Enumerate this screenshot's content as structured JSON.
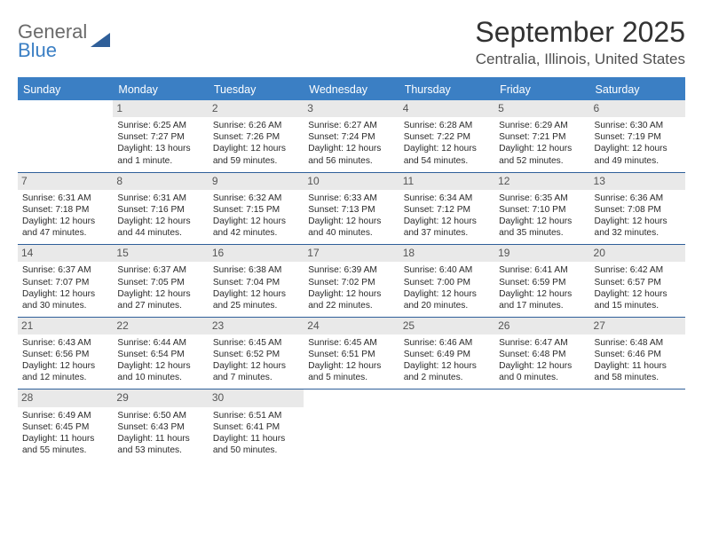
{
  "brand": {
    "name_line1": "General",
    "name_line2": "Blue",
    "icon_color": "#2f5f99"
  },
  "header": {
    "month_title": "September 2025",
    "location": "Centralia, Illinois, United States"
  },
  "style": {
    "header_bg": "#3b7fc4",
    "border_color": "#2f5f99",
    "daynum_bg": "#e9e9e9",
    "text_color": "#333333",
    "title_fontsize": 32,
    "location_fontsize": 17,
    "dayheader_fontsize": 12.5,
    "cell_fontsize": 10.2
  },
  "day_headers": [
    "Sunday",
    "Monday",
    "Tuesday",
    "Wednesday",
    "Thursday",
    "Friday",
    "Saturday"
  ],
  "weeks": [
    [
      {
        "empty": true
      },
      {
        "num": "1",
        "sunrise": "Sunrise: 6:25 AM",
        "sunset": "Sunset: 7:27 PM",
        "daylight1": "Daylight: 13 hours",
        "daylight2": "and 1 minute."
      },
      {
        "num": "2",
        "sunrise": "Sunrise: 6:26 AM",
        "sunset": "Sunset: 7:26 PM",
        "daylight1": "Daylight: 12 hours",
        "daylight2": "and 59 minutes."
      },
      {
        "num": "3",
        "sunrise": "Sunrise: 6:27 AM",
        "sunset": "Sunset: 7:24 PM",
        "daylight1": "Daylight: 12 hours",
        "daylight2": "and 56 minutes."
      },
      {
        "num": "4",
        "sunrise": "Sunrise: 6:28 AM",
        "sunset": "Sunset: 7:22 PM",
        "daylight1": "Daylight: 12 hours",
        "daylight2": "and 54 minutes."
      },
      {
        "num": "5",
        "sunrise": "Sunrise: 6:29 AM",
        "sunset": "Sunset: 7:21 PM",
        "daylight1": "Daylight: 12 hours",
        "daylight2": "and 52 minutes."
      },
      {
        "num": "6",
        "sunrise": "Sunrise: 6:30 AM",
        "sunset": "Sunset: 7:19 PM",
        "daylight1": "Daylight: 12 hours",
        "daylight2": "and 49 minutes."
      }
    ],
    [
      {
        "num": "7",
        "sunrise": "Sunrise: 6:31 AM",
        "sunset": "Sunset: 7:18 PM",
        "daylight1": "Daylight: 12 hours",
        "daylight2": "and 47 minutes."
      },
      {
        "num": "8",
        "sunrise": "Sunrise: 6:31 AM",
        "sunset": "Sunset: 7:16 PM",
        "daylight1": "Daylight: 12 hours",
        "daylight2": "and 44 minutes."
      },
      {
        "num": "9",
        "sunrise": "Sunrise: 6:32 AM",
        "sunset": "Sunset: 7:15 PM",
        "daylight1": "Daylight: 12 hours",
        "daylight2": "and 42 minutes."
      },
      {
        "num": "10",
        "sunrise": "Sunrise: 6:33 AM",
        "sunset": "Sunset: 7:13 PM",
        "daylight1": "Daylight: 12 hours",
        "daylight2": "and 40 minutes."
      },
      {
        "num": "11",
        "sunrise": "Sunrise: 6:34 AM",
        "sunset": "Sunset: 7:12 PM",
        "daylight1": "Daylight: 12 hours",
        "daylight2": "and 37 minutes."
      },
      {
        "num": "12",
        "sunrise": "Sunrise: 6:35 AM",
        "sunset": "Sunset: 7:10 PM",
        "daylight1": "Daylight: 12 hours",
        "daylight2": "and 35 minutes."
      },
      {
        "num": "13",
        "sunrise": "Sunrise: 6:36 AM",
        "sunset": "Sunset: 7:08 PM",
        "daylight1": "Daylight: 12 hours",
        "daylight2": "and 32 minutes."
      }
    ],
    [
      {
        "num": "14",
        "sunrise": "Sunrise: 6:37 AM",
        "sunset": "Sunset: 7:07 PM",
        "daylight1": "Daylight: 12 hours",
        "daylight2": "and 30 minutes."
      },
      {
        "num": "15",
        "sunrise": "Sunrise: 6:37 AM",
        "sunset": "Sunset: 7:05 PM",
        "daylight1": "Daylight: 12 hours",
        "daylight2": "and 27 minutes."
      },
      {
        "num": "16",
        "sunrise": "Sunrise: 6:38 AM",
        "sunset": "Sunset: 7:04 PM",
        "daylight1": "Daylight: 12 hours",
        "daylight2": "and 25 minutes."
      },
      {
        "num": "17",
        "sunrise": "Sunrise: 6:39 AM",
        "sunset": "Sunset: 7:02 PM",
        "daylight1": "Daylight: 12 hours",
        "daylight2": "and 22 minutes."
      },
      {
        "num": "18",
        "sunrise": "Sunrise: 6:40 AM",
        "sunset": "Sunset: 7:00 PM",
        "daylight1": "Daylight: 12 hours",
        "daylight2": "and 20 minutes."
      },
      {
        "num": "19",
        "sunrise": "Sunrise: 6:41 AM",
        "sunset": "Sunset: 6:59 PM",
        "daylight1": "Daylight: 12 hours",
        "daylight2": "and 17 minutes."
      },
      {
        "num": "20",
        "sunrise": "Sunrise: 6:42 AM",
        "sunset": "Sunset: 6:57 PM",
        "daylight1": "Daylight: 12 hours",
        "daylight2": "and 15 minutes."
      }
    ],
    [
      {
        "num": "21",
        "sunrise": "Sunrise: 6:43 AM",
        "sunset": "Sunset: 6:56 PM",
        "daylight1": "Daylight: 12 hours",
        "daylight2": "and 12 minutes."
      },
      {
        "num": "22",
        "sunrise": "Sunrise: 6:44 AM",
        "sunset": "Sunset: 6:54 PM",
        "daylight1": "Daylight: 12 hours",
        "daylight2": "and 10 minutes."
      },
      {
        "num": "23",
        "sunrise": "Sunrise: 6:45 AM",
        "sunset": "Sunset: 6:52 PM",
        "daylight1": "Daylight: 12 hours",
        "daylight2": "and 7 minutes."
      },
      {
        "num": "24",
        "sunrise": "Sunrise: 6:45 AM",
        "sunset": "Sunset: 6:51 PM",
        "daylight1": "Daylight: 12 hours",
        "daylight2": "and 5 minutes."
      },
      {
        "num": "25",
        "sunrise": "Sunrise: 6:46 AM",
        "sunset": "Sunset: 6:49 PM",
        "daylight1": "Daylight: 12 hours",
        "daylight2": "and 2 minutes."
      },
      {
        "num": "26",
        "sunrise": "Sunrise: 6:47 AM",
        "sunset": "Sunset: 6:48 PM",
        "daylight1": "Daylight: 12 hours",
        "daylight2": "and 0 minutes."
      },
      {
        "num": "27",
        "sunrise": "Sunrise: 6:48 AM",
        "sunset": "Sunset: 6:46 PM",
        "daylight1": "Daylight: 11 hours",
        "daylight2": "and 58 minutes."
      }
    ],
    [
      {
        "num": "28",
        "sunrise": "Sunrise: 6:49 AM",
        "sunset": "Sunset: 6:45 PM",
        "daylight1": "Daylight: 11 hours",
        "daylight2": "and 55 minutes."
      },
      {
        "num": "29",
        "sunrise": "Sunrise: 6:50 AM",
        "sunset": "Sunset: 6:43 PM",
        "daylight1": "Daylight: 11 hours",
        "daylight2": "and 53 minutes."
      },
      {
        "num": "30",
        "sunrise": "Sunrise: 6:51 AM",
        "sunset": "Sunset: 6:41 PM",
        "daylight1": "Daylight: 11 hours",
        "daylight2": "and 50 minutes."
      },
      {
        "empty": true
      },
      {
        "empty": true
      },
      {
        "empty": true
      },
      {
        "empty": true
      }
    ]
  ]
}
